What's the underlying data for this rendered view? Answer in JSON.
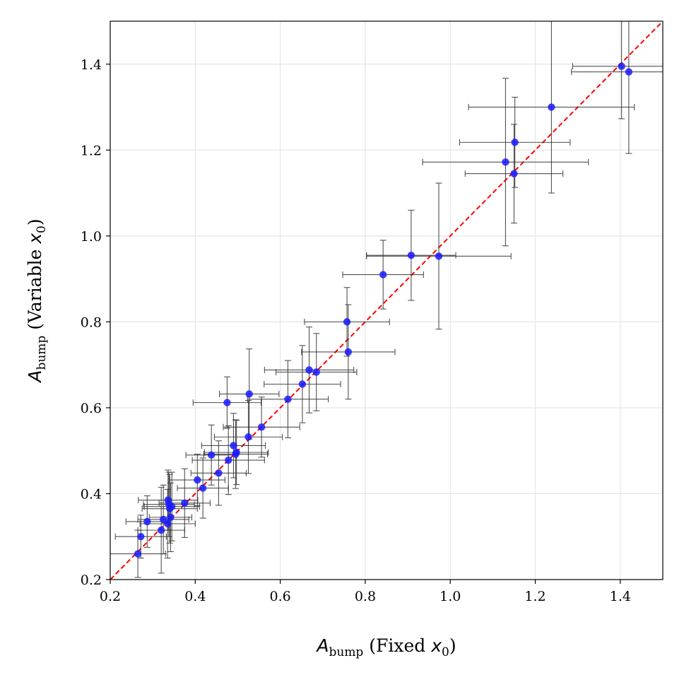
{
  "chart_data": {
    "type": "scatter",
    "title": "",
    "xlabel": {
      "main": "A",
      "sub": "bump",
      "rest": " (Fixed ",
      "var": "x",
      "var_sub": "0",
      "close": ")"
    },
    "ylabel": {
      "main": "A",
      "sub": "bump",
      "rest": " (Variable ",
      "var": "x",
      "var_sub": "0",
      "close": ")"
    },
    "xlim": [
      0.2,
      1.5
    ],
    "ylim": [
      0.2,
      1.5
    ],
    "xticks": [
      0.2,
      0.4,
      0.6,
      0.8,
      1.0,
      1.2,
      1.4
    ],
    "yticks": [
      0.2,
      0.4,
      0.6,
      0.8,
      1.0,
      1.2,
      1.4
    ],
    "xtick_labels": [
      "0.2",
      "0.4",
      "0.6",
      "0.8",
      "1.0",
      "1.2",
      "1.4"
    ],
    "ytick_labels": [
      "0.2",
      "0.4",
      "0.6",
      "0.8",
      "1.0",
      "1.2",
      "1.4"
    ],
    "grid": true,
    "legend": "none",
    "colors": {
      "points": "#1a1aff",
      "errorbars": "#333333",
      "reference_line": "#ff0000",
      "grid": "#e6e6e6"
    },
    "reference_line": {
      "style": "dashed",
      "from": [
        0.2,
        0.2
      ],
      "to": [
        1.5,
        1.5
      ]
    },
    "points": [
      {
        "x": 0.265,
        "y": 0.26,
        "xerr": 0.065,
        "yerr": 0.055
      },
      {
        "x": 0.272,
        "y": 0.3,
        "xerr": 0.06,
        "yerr": 0.05
      },
      {
        "x": 0.287,
        "y": 0.335,
        "xerr": 0.05,
        "yerr": 0.06
      },
      {
        "x": 0.32,
        "y": 0.315,
        "xerr": 0.055,
        "yerr": 0.1
      },
      {
        "x": 0.325,
        "y": 0.34,
        "xerr": 0.06,
        "yerr": 0.08
      },
      {
        "x": 0.335,
        "y": 0.33,
        "xerr": 0.065,
        "yerr": 0.08
      },
      {
        "x": 0.336,
        "y": 0.385,
        "xerr": 0.07,
        "yerr": 0.07
      },
      {
        "x": 0.338,
        "y": 0.375,
        "xerr": 0.06,
        "yerr": 0.075
      },
      {
        "x": 0.34,
        "y": 0.365,
        "xerr": 0.065,
        "yerr": 0.08
      },
      {
        "x": 0.342,
        "y": 0.345,
        "xerr": 0.05,
        "yerr": 0.08
      },
      {
        "x": 0.345,
        "y": 0.37,
        "xerr": 0.065,
        "yerr": 0.08
      },
      {
        "x": 0.375,
        "y": 0.378,
        "xerr": 0.06,
        "yerr": 0.08
      },
      {
        "x": 0.405,
        "y": 0.432,
        "xerr": 0.065,
        "yerr": 0.06
      },
      {
        "x": 0.418,
        "y": 0.413,
        "xerr": 0.06,
        "yerr": 0.07
      },
      {
        "x": 0.438,
        "y": 0.49,
        "xerr": 0.06,
        "yerr": 0.07
      },
      {
        "x": 0.455,
        "y": 0.448,
        "xerr": 0.065,
        "yerr": 0.075
      },
      {
        "x": 0.475,
        "y": 0.612,
        "xerr": 0.08,
        "yerr": 0.06
      },
      {
        "x": 0.478,
        "y": 0.478,
        "xerr": 0.085,
        "yerr": 0.08
      },
      {
        "x": 0.49,
        "y": 0.512,
        "xerr": 0.075,
        "yerr": 0.075
      },
      {
        "x": 0.495,
        "y": 0.492,
        "xerr": 0.075,
        "yerr": 0.08
      },
      {
        "x": 0.497,
        "y": 0.496,
        "xerr": 0.075,
        "yerr": 0.075
      },
      {
        "x": 0.525,
        "y": 0.532,
        "xerr": 0.08,
        "yerr": 0.085
      },
      {
        "x": 0.527,
        "y": 0.632,
        "xerr": 0.07,
        "yerr": 0.105
      },
      {
        "x": 0.556,
        "y": 0.555,
        "xerr": 0.09,
        "yerr": 0.07
      },
      {
        "x": 0.618,
        "y": 0.62,
        "xerr": 0.095,
        "yerr": 0.09
      },
      {
        "x": 0.652,
        "y": 0.655,
        "xerr": 0.09,
        "yerr": 0.09
      },
      {
        "x": 0.668,
        "y": 0.688,
        "xerr": 0.105,
        "yerr": 0.1
      },
      {
        "x": 0.685,
        "y": 0.683,
        "xerr": 0.095,
        "yerr": 0.09
      },
      {
        "x": 0.757,
        "y": 0.8,
        "xerr": 0.1,
        "yerr": 0.08
      },
      {
        "x": 0.76,
        "y": 0.73,
        "xerr": 0.11,
        "yerr": 0.11
      },
      {
        "x": 0.842,
        "y": 0.91,
        "xerr": 0.095,
        "yerr": 0.08
      },
      {
        "x": 0.908,
        "y": 0.955,
        "xerr": 0.105,
        "yerr": 0.105
      },
      {
        "x": 0.973,
        "y": 0.953,
        "xerr": 0.17,
        "yerr": 0.17
      },
      {
        "x": 1.13,
        "y": 1.172,
        "xerr": 0.195,
        "yerr": 0.195
      },
      {
        "x": 1.15,
        "y": 1.145,
        "xerr": 0.115,
        "yerr": 0.115
      },
      {
        "x": 1.152,
        "y": 1.218,
        "xerr": 0.13,
        "yerr": 0.105
      },
      {
        "x": 1.238,
        "y": 1.3,
        "xerr": 0.195,
        "yerr": 0.2
      },
      {
        "x": 1.403,
        "y": 1.395,
        "xerr": 0.115,
        "yerr": 0.122
      },
      {
        "x": 1.42,
        "y": 1.382,
        "xerr": 0.135,
        "yerr": 0.19
      }
    ]
  }
}
